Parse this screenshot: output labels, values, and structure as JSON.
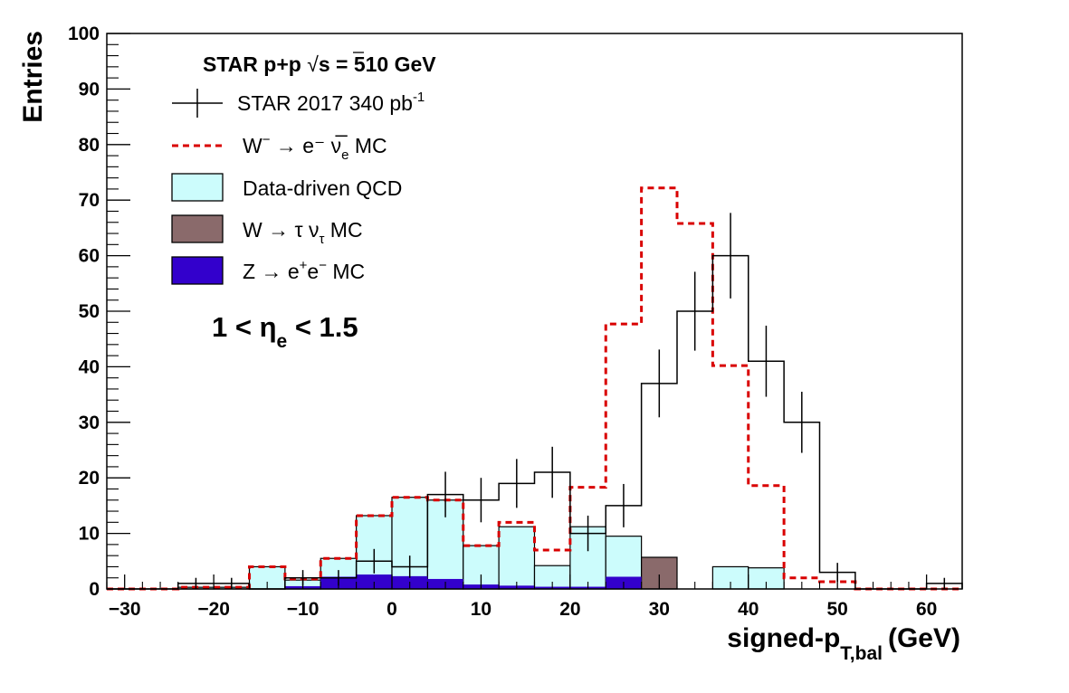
{
  "chart_data": {
    "type": "histogram",
    "xlabel": "signed-p",
    "xlabel_sub": "T,bal",
    "xlabel_unit": "(GeV)",
    "ylabel": "Entries",
    "xlim": [
      -32,
      64
    ],
    "ylim": [
      0,
      100
    ],
    "x_ticks": [
      -30,
      -20,
      -10,
      0,
      10,
      20,
      30,
      40,
      50,
      60
    ],
    "x_tick_labels": [
      "−30",
      "−20",
      "−10",
      "0",
      "10",
      "20",
      "30",
      "40",
      "50",
      "60"
    ],
    "y_ticks": [
      0,
      10,
      20,
      30,
      40,
      50,
      60,
      70,
      80,
      90,
      100
    ],
    "y_tick_labels": [
      "0",
      "10",
      "20",
      "30",
      "40",
      "50",
      "60",
      "70",
      "80",
      "90",
      "100"
    ],
    "bin_edges": [
      -32,
      -28,
      -24,
      -20,
      -16,
      -12,
      -8,
      -4,
      0,
      4,
      8,
      12,
      16,
      20,
      24,
      28,
      32,
      36,
      40,
      44,
      48,
      52,
      56,
      60,
      64
    ],
    "header": {
      "pre": "STAR p+p  ",
      "sqrt": "√",
      "post": "s = 510 GeV"
    },
    "annotation": {
      "pre": "1 < η",
      "sub": "e",
      "post": " < 1.5"
    },
    "series": [
      {
        "name": "STAR 2017 340 pb",
        "name_sup": "-1",
        "kind": "data",
        "values": [
          0,
          0,
          1,
          1,
          0,
          2,
          2,
          5,
          4,
          17,
          16,
          19,
          21,
          10,
          15,
          37,
          50,
          60,
          41,
          30,
          3,
          0,
          0,
          1
        ],
        "errors": [
          0,
          0,
          1,
          1,
          0,
          1.4,
          1.4,
          2.2,
          2,
          4.1,
          4,
          4.4,
          4.6,
          3.2,
          3.9,
          6.1,
          7.1,
          7.7,
          6.4,
          5.5,
          1.7,
          0,
          0,
          1
        ]
      },
      {
        "name": "W",
        "name_sup": "−",
        "name_rest": " → e⁻ ν̅",
        "name_sub": "e",
        "name_tail": " MC",
        "kind": "line",
        "values": [
          0,
          0,
          0.3,
          0.3,
          4,
          1.8,
          5.5,
          13.2,
          16.5,
          16,
          7.8,
          12,
          7,
          18.3,
          47.7,
          72.2,
          65.8,
          40.2,
          18.6,
          2,
          1.3,
          0,
          0,
          0
        ]
      },
      {
        "name": "Data-driven QCD",
        "kind": "fill",
        "values": [
          0,
          0,
          0.3,
          0.3,
          4,
          1.6,
          5.5,
          13.2,
          16.5,
          16,
          7.8,
          11.2,
          4.2,
          11.2,
          9.5,
          0,
          0,
          4,
          3.8,
          0,
          0,
          0,
          0,
          0
        ]
      },
      {
        "name": "W → τ ν",
        "name_sub": "τ",
        "name_tail": " MC",
        "kind": "fill",
        "values": [
          0,
          0,
          0,
          0,
          0,
          0,
          0,
          0,
          0,
          0,
          0,
          0,
          0,
          0,
          0,
          5.7,
          0,
          0,
          0,
          0,
          0,
          0,
          0,
          0
        ]
      },
      {
        "name": "Z → e",
        "name_sup": "+",
        "name_rest": "e",
        "name_sup2": "−",
        "name_tail": " MC",
        "kind": "fill",
        "values": [
          0,
          0,
          0,
          0,
          0,
          0.5,
          2.2,
          2.6,
          2.3,
          1.8,
          0.8,
          0.6,
          0.4,
          0.4,
          2.2,
          0,
          0,
          0,
          0,
          0,
          0,
          0,
          0,
          0
        ]
      }
    ],
    "colors": {
      "data": "#000000",
      "mc_line": "#d90000",
      "qcd": "#ccfcfc",
      "tau": "#8a6a6b",
      "z": "#3300cc"
    },
    "legend_position": "top-left"
  }
}
